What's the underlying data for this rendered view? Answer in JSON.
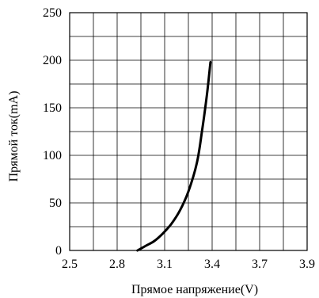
{
  "chart_data": {
    "type": "line",
    "xlabel": "Прямое напряжение(V)",
    "ylabel": "Прямой ток(mA)",
    "xlim": [
      2.5,
      3.9
    ],
    "ylim": [
      0,
      250
    ],
    "grid": true,
    "x_tick_labels": [
      "2.5",
      "2.8",
      "3.1",
      "3.4",
      "3.7",
      "3.9"
    ],
    "y_tick_labels": [
      "0",
      "50",
      "100",
      "150",
      "200",
      "250"
    ],
    "series": [
      {
        "x": [
          2.9,
          2.95,
          3.0,
          3.05,
          3.1,
          3.15,
          3.2,
          3.25,
          3.28,
          3.31,
          3.33
        ],
        "y": [
          0,
          5,
          10,
          18,
          28,
          42,
          62,
          92,
          125,
          165,
          198
        ]
      }
    ]
  }
}
